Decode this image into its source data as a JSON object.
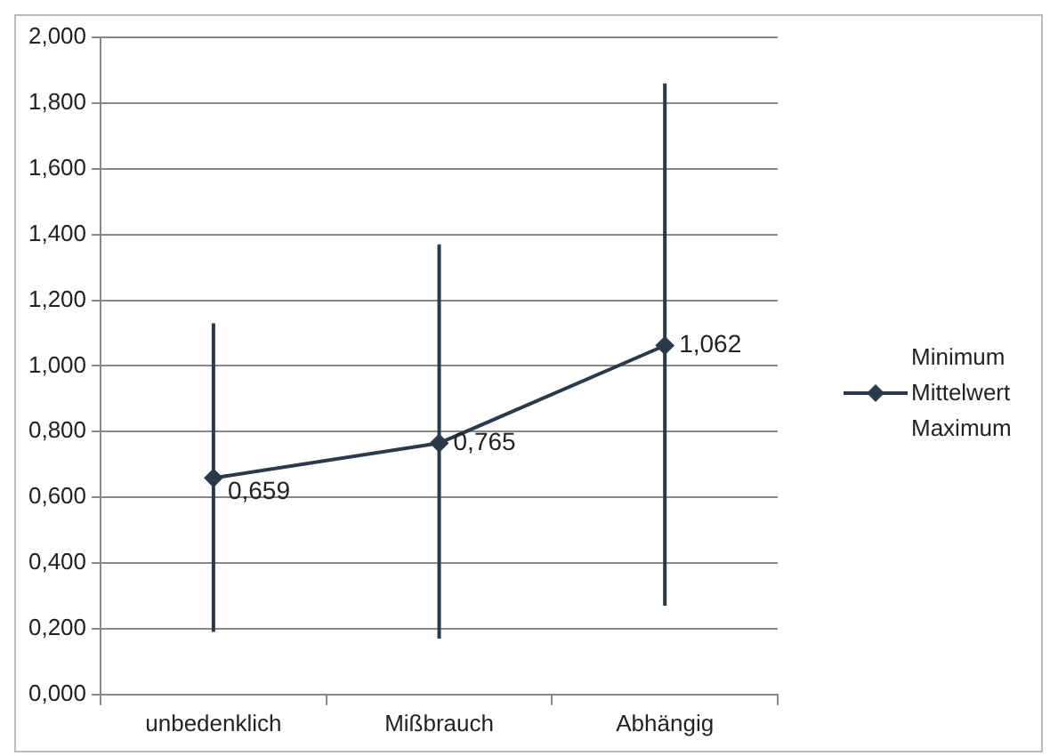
{
  "chart_data": {
    "type": "line",
    "categories": [
      "unbedenklich",
      "Mißbrauch",
      "Abhängig"
    ],
    "series": [
      {
        "name": "Mittelwert",
        "color": "#2b3a4a",
        "values": [
          0.659,
          0.765,
          1.062
        ],
        "value_labels": [
          "0,659",
          "0,765",
          "1,062"
        ],
        "errors": [
          [
            0.19,
            1.13
          ],
          [
            0.17,
            1.37
          ],
          [
            0.27,
            1.86
          ]
        ]
      }
    ],
    "ylim": [
      0,
      2
    ],
    "yticks": [
      {
        "value": 0,
        "label": "0,000"
      },
      {
        "value": 0.2,
        "label": "0,200"
      },
      {
        "value": 0.4,
        "label": "0,400"
      },
      {
        "value": 0.6,
        "label": "0,600"
      },
      {
        "value": 0.8,
        "label": "0,800"
      },
      {
        "value": 1,
        "label": "1,000"
      },
      {
        "value": 1.2,
        "label": "1,200"
      },
      {
        "value": 1.4,
        "label": "1,400"
      },
      {
        "value": 1.6,
        "label": "1,600"
      },
      {
        "value": 1.8,
        "label": "1,800"
      },
      {
        "value": 2,
        "label": "2,000"
      }
    ],
    "grid": "y",
    "legend": "right",
    "marker": "diamond",
    "line_style": "solid",
    "annotations": [
      "Minimum",
      "Maximum"
    ]
  }
}
